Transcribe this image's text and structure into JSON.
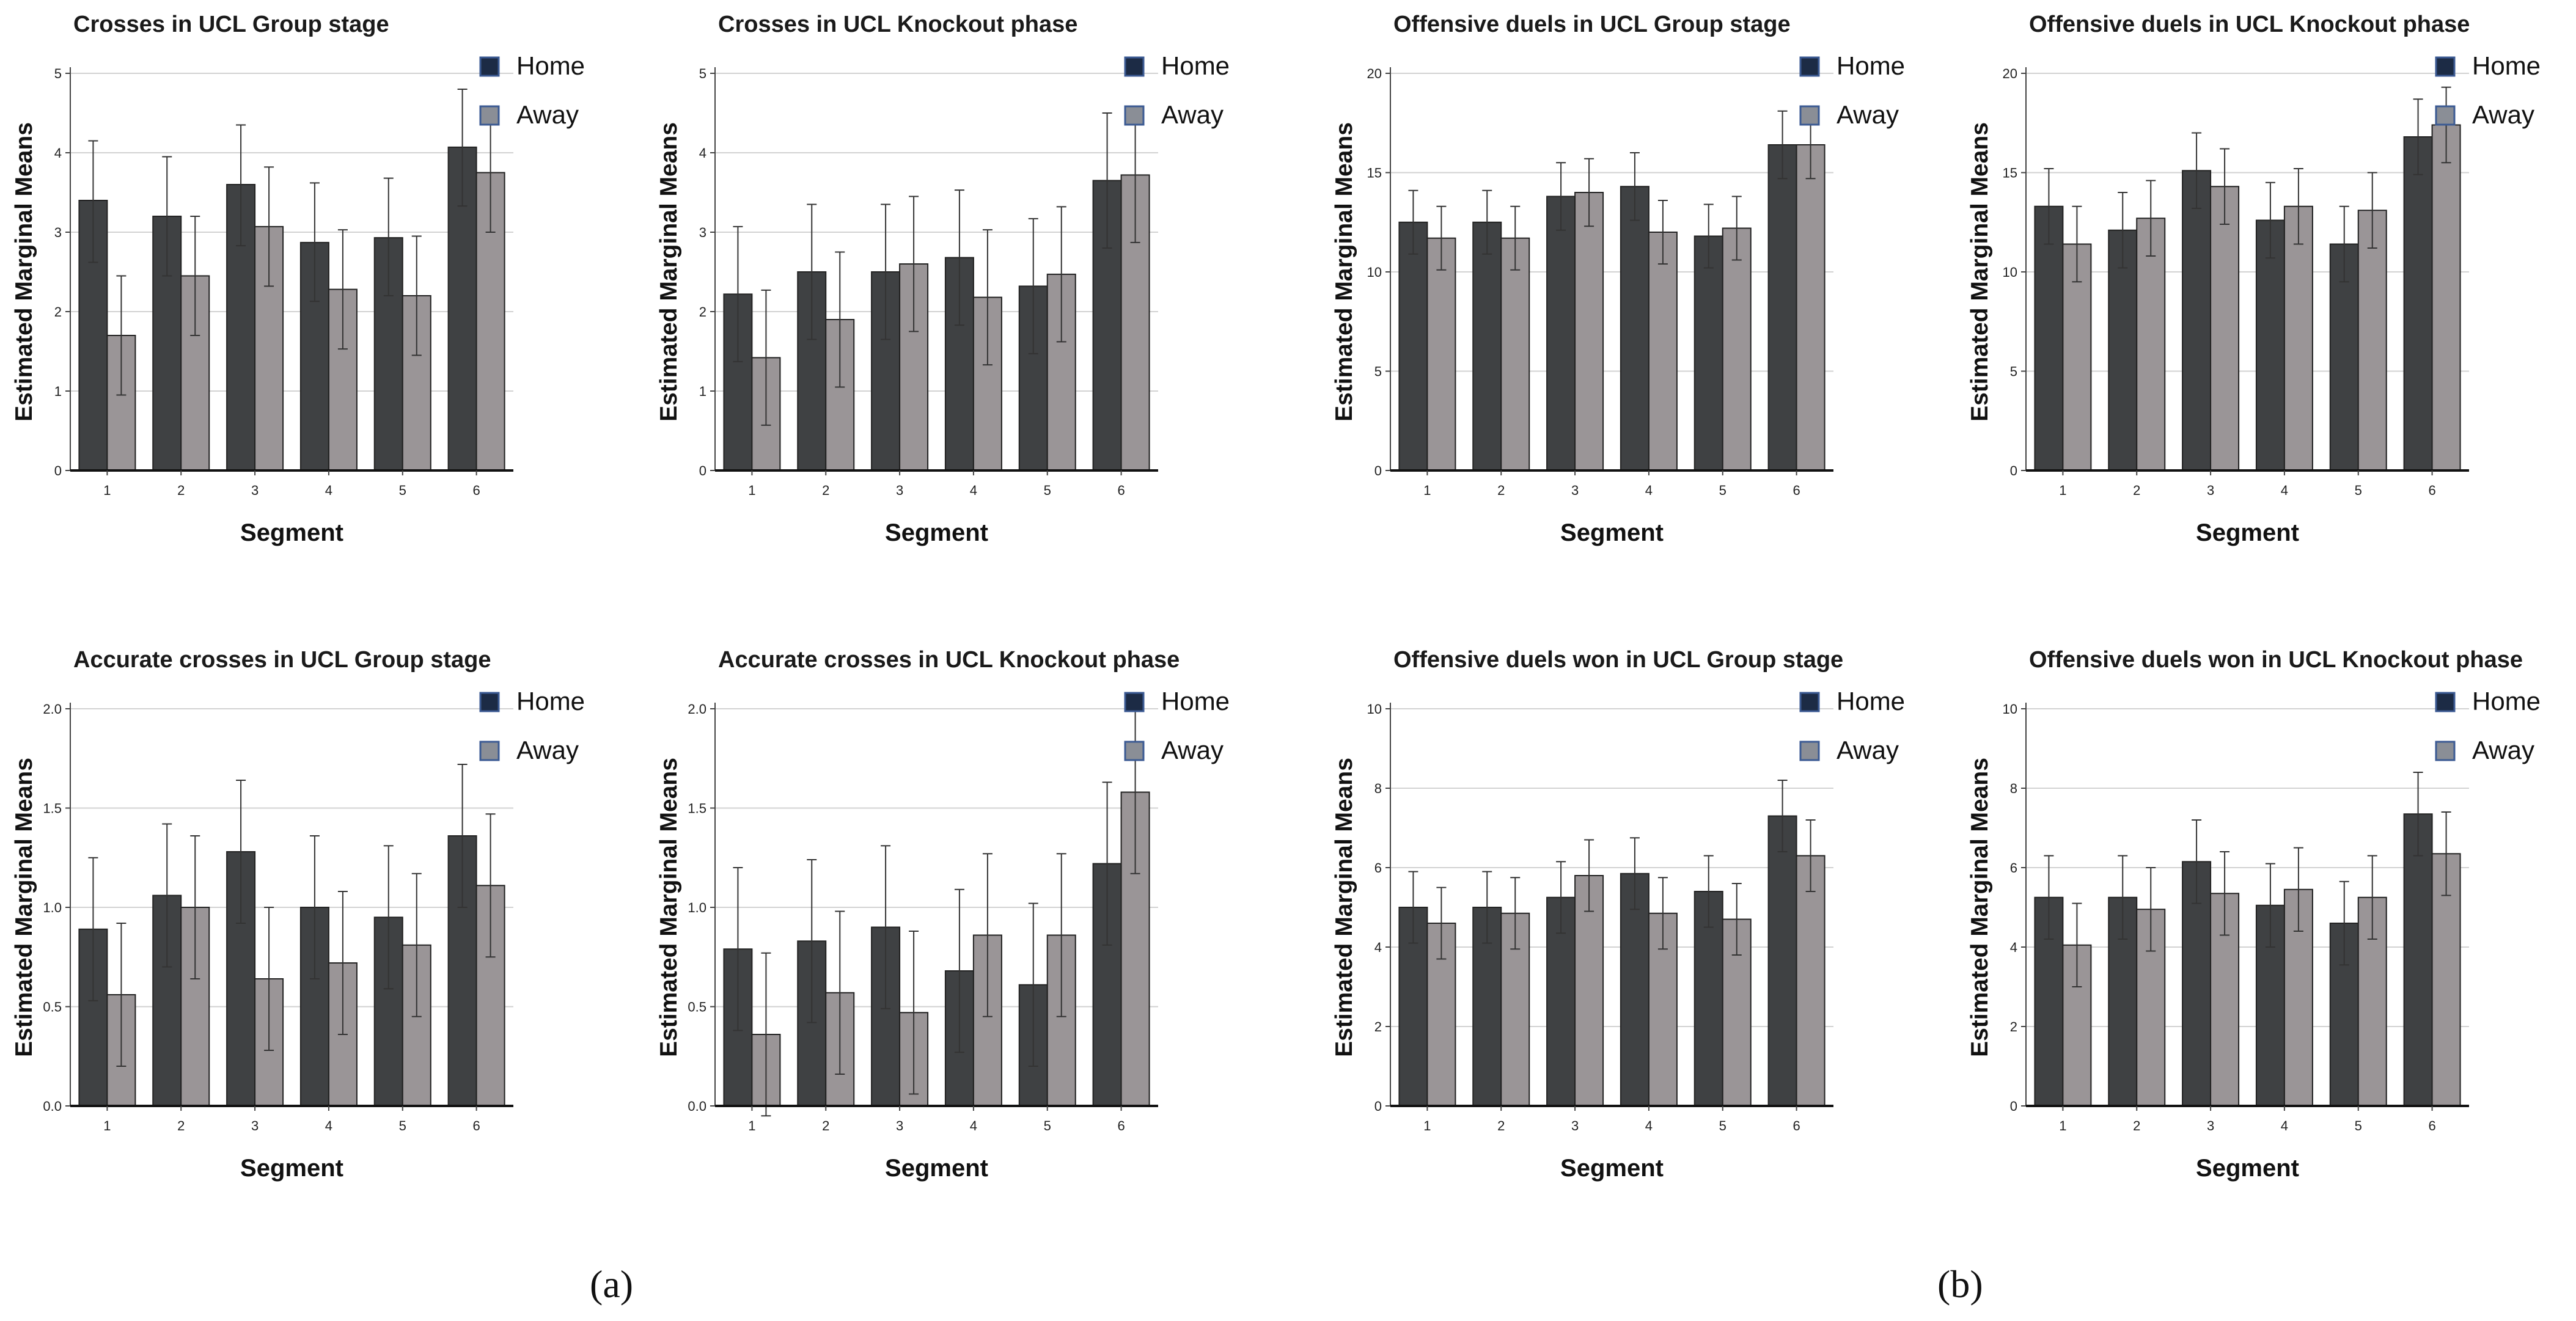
{
  "figure": {
    "panel_labels": [
      "(a)",
      "(b)"
    ],
    "series_colors": {
      "Home": "#3f4143",
      "Away": "#9a9597"
    },
    "legend_colors": {
      "Home": "#1c2b45",
      "Away": "#8a8e96"
    }
  },
  "chart_data": [
    {
      "type": "bar",
      "title": "Crosses in UCL Group stage",
      "xlabel": "Segment",
      "ylabel": "Estimated Marginal Means",
      "categories": [
        "1",
        "2",
        "3",
        "4",
        "5",
        "6"
      ],
      "ylim": [
        0,
        5
      ],
      "yticks": [
        "0",
        "1",
        "2",
        "3",
        "4",
        "5"
      ],
      "grid": true,
      "legend_position": "top-right",
      "series": [
        {
          "name": "Home",
          "values": [
            3.4,
            3.2,
            3.6,
            2.87,
            2.93,
            4.07
          ],
          "err_low": [
            2.62,
            2.45,
            2.83,
            2.13,
            2.2,
            3.33
          ],
          "err_high": [
            4.15,
            3.95,
            4.35,
            3.62,
            3.68,
            4.8
          ]
        },
        {
          "name": "Away",
          "values": [
            1.7,
            2.45,
            3.07,
            2.28,
            2.2,
            3.75
          ],
          "err_low": [
            0.95,
            1.7,
            2.32,
            1.53,
            1.45,
            3.0
          ],
          "err_high": [
            2.45,
            3.2,
            3.82,
            3.03,
            2.95,
            4.5
          ]
        }
      ]
    },
    {
      "type": "bar",
      "title": "Crosses in UCL Knockout phase",
      "xlabel": "Segment",
      "ylabel": "Estimated Marginal Means",
      "categories": [
        "1",
        "2",
        "3",
        "4",
        "5",
        "6"
      ],
      "ylim": [
        0,
        5
      ],
      "yticks": [
        "0",
        "1",
        "2",
        "3",
        "4",
        "5"
      ],
      "grid": true,
      "legend_position": "top-right",
      "series": [
        {
          "name": "Home",
          "values": [
            2.22,
            2.5,
            2.5,
            2.68,
            2.32,
            3.65
          ],
          "err_low": [
            1.37,
            1.65,
            1.65,
            1.83,
            1.47,
            2.8
          ],
          "err_high": [
            3.07,
            3.35,
            3.35,
            3.53,
            3.17,
            4.5
          ]
        },
        {
          "name": "Away",
          "values": [
            1.42,
            1.9,
            2.6,
            2.18,
            2.47,
            3.72
          ],
          "err_low": [
            0.57,
            1.05,
            1.75,
            1.33,
            1.62,
            2.87
          ],
          "err_high": [
            2.27,
            2.75,
            3.45,
            3.03,
            3.32,
            4.57
          ]
        }
      ]
    },
    {
      "type": "bar",
      "title": "Offensive duels in UCL Group stage",
      "xlabel": "Segment",
      "ylabel": "Estimated Marginal Means",
      "categories": [
        "1",
        "2",
        "3",
        "4",
        "5",
        "6"
      ],
      "ylim": [
        0,
        20
      ],
      "yticks": [
        "0",
        "5",
        "10",
        "15",
        "20"
      ],
      "grid": true,
      "legend_position": "top-right",
      "series": [
        {
          "name": "Home",
          "values": [
            12.5,
            12.5,
            13.8,
            14.3,
            11.8,
            16.4
          ],
          "err_low": [
            10.9,
            10.9,
            12.1,
            12.6,
            10.2,
            14.7
          ],
          "err_high": [
            14.1,
            14.1,
            15.5,
            16.0,
            13.4,
            18.1
          ]
        },
        {
          "name": "Away",
          "values": [
            11.7,
            11.7,
            14.0,
            12.0,
            12.2,
            16.4
          ],
          "err_low": [
            10.1,
            10.1,
            12.3,
            10.4,
            10.6,
            14.7
          ],
          "err_high": [
            13.3,
            13.3,
            15.7,
            13.6,
            13.8,
            18.1
          ]
        }
      ]
    },
    {
      "type": "bar",
      "title": "Offensive duels in UCL Knockout phase",
      "xlabel": "Segment",
      "ylabel": "Estimated Marginal Means",
      "categories": [
        "1",
        "2",
        "3",
        "4",
        "5",
        "6"
      ],
      "ylim": [
        0,
        20
      ],
      "yticks": [
        "0",
        "5",
        "10",
        "15",
        "20"
      ],
      "grid": true,
      "legend_position": "top-right",
      "series": [
        {
          "name": "Home",
          "values": [
            13.3,
            12.1,
            15.1,
            12.6,
            11.4,
            16.8
          ],
          "err_low": [
            11.4,
            10.2,
            13.2,
            10.7,
            9.5,
            14.9
          ],
          "err_high": [
            15.2,
            14.0,
            17.0,
            14.5,
            13.3,
            18.7
          ]
        },
        {
          "name": "Away",
          "values": [
            11.4,
            12.7,
            14.3,
            13.3,
            13.1,
            17.4
          ],
          "err_low": [
            9.5,
            10.8,
            12.4,
            11.4,
            11.2,
            15.5
          ],
          "err_high": [
            13.3,
            14.6,
            16.2,
            15.2,
            15.0,
            19.3
          ]
        }
      ]
    },
    {
      "type": "bar",
      "title": "Accurate crosses in UCL Group stage",
      "xlabel": "Segment",
      "ylabel": "Estimated Marginal Means",
      "categories": [
        "1",
        "2",
        "3",
        "4",
        "5",
        "6"
      ],
      "ylim": [
        0,
        2
      ],
      "yticks": [
        "0.0",
        "0.5",
        "1.0",
        "1.5",
        "2.0"
      ],
      "grid": true,
      "legend_position": "top-right",
      "series": [
        {
          "name": "Home",
          "values": [
            0.89,
            1.06,
            1.28,
            1.0,
            0.95,
            1.36
          ],
          "err_low": [
            0.53,
            0.7,
            0.92,
            0.64,
            0.59,
            1.0
          ],
          "err_high": [
            1.25,
            1.42,
            1.64,
            1.36,
            1.31,
            1.72
          ]
        },
        {
          "name": "Away",
          "values": [
            0.56,
            1.0,
            0.64,
            0.72,
            0.81,
            1.11
          ],
          "err_low": [
            0.2,
            0.64,
            0.28,
            0.36,
            0.45,
            0.75
          ],
          "err_high": [
            0.92,
            1.36,
            1.0,
            1.08,
            1.17,
            1.47
          ]
        }
      ]
    },
    {
      "type": "bar",
      "title": "Accurate crosses in UCL Knockout phase",
      "xlabel": "Segment",
      "ylabel": "Estimated Marginal Means",
      "categories": [
        "1",
        "2",
        "3",
        "4",
        "5",
        "6"
      ],
      "ylim": [
        0,
        2
      ],
      "yticks": [
        "0.0",
        "0.5",
        "1.0",
        "1.5",
        "2.0"
      ],
      "grid": true,
      "legend_position": "top-right",
      "series": [
        {
          "name": "Home",
          "values": [
            0.79,
            0.83,
            0.9,
            0.68,
            0.61,
            1.22
          ],
          "err_low": [
            0.38,
            0.42,
            0.49,
            0.27,
            0.2,
            0.81
          ],
          "err_high": [
            1.2,
            1.24,
            1.31,
            1.09,
            1.02,
            1.63
          ]
        },
        {
          "name": "Away",
          "values": [
            0.36,
            0.57,
            0.47,
            0.86,
            0.86,
            1.58
          ],
          "err_low": [
            -0.05,
            0.16,
            0.06,
            0.45,
            0.45,
            1.17
          ],
          "err_high": [
            0.77,
            0.98,
            0.88,
            1.27,
            1.27,
            1.99
          ]
        }
      ]
    },
    {
      "type": "bar",
      "title": "Offensive duels won in UCL Group stage",
      "xlabel": "Segment",
      "ylabel": "Estimated Marginal Means",
      "categories": [
        "1",
        "2",
        "3",
        "4",
        "5",
        "6"
      ],
      "ylim": [
        0,
        10
      ],
      "yticks": [
        "0",
        "2",
        "4",
        "6",
        "8",
        "10"
      ],
      "grid": true,
      "legend_position": "top-right",
      "series": [
        {
          "name": "Home",
          "values": [
            5.0,
            5.0,
            5.25,
            5.85,
            5.4,
            7.3
          ],
          "err_low": [
            4.1,
            4.1,
            4.35,
            4.95,
            4.5,
            6.4
          ],
          "err_high": [
            5.9,
            5.9,
            6.15,
            6.75,
            6.3,
            8.2
          ]
        },
        {
          "name": "Away",
          "values": [
            4.6,
            4.85,
            5.8,
            4.85,
            4.7,
            6.3
          ],
          "err_low": [
            3.7,
            3.95,
            4.9,
            3.95,
            3.8,
            5.4
          ],
          "err_high": [
            5.5,
            5.75,
            6.7,
            5.75,
            5.6,
            7.2
          ]
        }
      ]
    },
    {
      "type": "bar",
      "title": "Offensive duels won in UCL Knockout phase",
      "xlabel": "Segment",
      "ylabel": "Estimated Marginal Means",
      "categories": [
        "1",
        "2",
        "3",
        "4",
        "5",
        "6"
      ],
      "ylim": [
        0,
        10
      ],
      "yticks": [
        "0",
        "2",
        "4",
        "6",
        "8",
        "10"
      ],
      "grid": true,
      "legend_position": "top-right",
      "series": [
        {
          "name": "Home",
          "values": [
            5.25,
            5.25,
            6.15,
            5.05,
            4.6,
            7.35
          ],
          "err_low": [
            4.2,
            4.2,
            5.1,
            4.0,
            3.55,
            6.3
          ],
          "err_high": [
            6.3,
            6.3,
            7.2,
            6.1,
            5.65,
            8.4
          ]
        },
        {
          "name": "Away",
          "values": [
            4.05,
            4.95,
            5.35,
            5.45,
            5.25,
            6.35
          ],
          "err_low": [
            3.0,
            3.9,
            4.3,
            4.4,
            4.2,
            5.3
          ],
          "err_high": [
            5.1,
            6.0,
            6.4,
            6.5,
            6.3,
            7.4
          ]
        }
      ]
    }
  ]
}
